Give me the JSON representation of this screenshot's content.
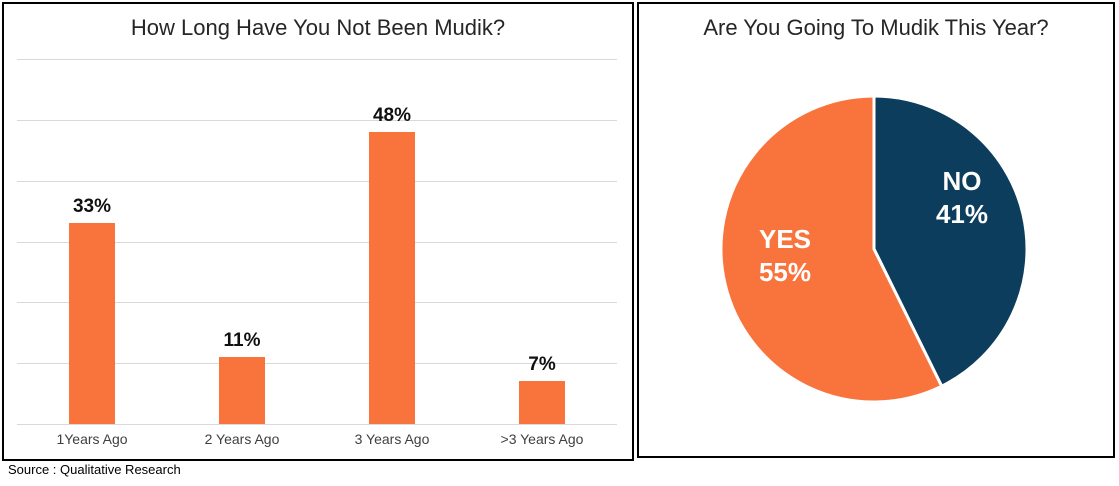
{
  "source_note": "Source : Qualitative Research",
  "colors": {
    "orange": "#F9743D",
    "navy": "#0C3D5C",
    "gridline": "#D9D9D9",
    "panel_border": "#000000",
    "title_text": "#262626",
    "pie_label_text": "#FFFFFF"
  },
  "chart_data": [
    {
      "type": "bar",
      "title": "How Long Have You Not Been Mudik?",
      "categories": [
        "1Years Ago",
        "2 Years Ago",
        "3 Years Ago",
        ">3 Years Ago"
      ],
      "values": [
        33,
        11,
        48,
        7
      ],
      "value_labels": [
        "33%",
        "11%",
        "48%",
        "7%"
      ],
      "xlabel": "",
      "ylabel": "",
      "ylim": [
        0,
        60
      ],
      "grid_step": 10,
      "grid": true,
      "y_tick_labels_visible": false,
      "legend": "none",
      "bar_color": "#F9743D"
    },
    {
      "type": "pie",
      "title": "Are You Going To Mudik This Year?",
      "slices": [
        {
          "label": "YES",
          "value": 55,
          "pct_text": "55%",
          "color": "#F9743D"
        },
        {
          "label": "NO",
          "value": 41,
          "pct_text": "41%",
          "color": "#0C3D5C"
        }
      ],
      "clockwise_from_top_order": [
        "NO",
        "YES"
      ],
      "separator_color": "#FFFFFF",
      "legend": "labels-inside"
    }
  ]
}
